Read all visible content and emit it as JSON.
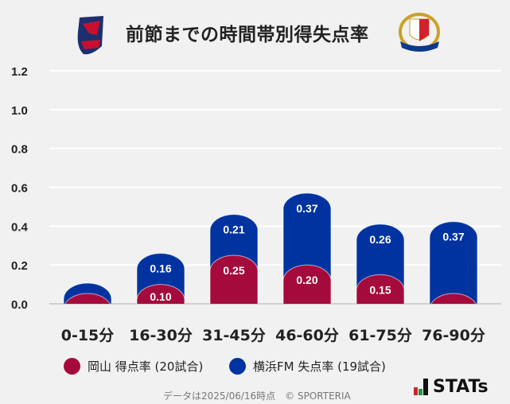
{
  "title": "前節までの時間帯別得失点率",
  "logos": {
    "left": "Fagiano Okayama",
    "right": "Yokohama F·Marinos"
  },
  "chart_data": {
    "type": "bar",
    "stacked": true,
    "categories": [
      "0-15分",
      "16-30分",
      "31-45分",
      "46-60分",
      "61-75分",
      "76-90分"
    ],
    "series": [
      {
        "name": "岡山 得点率 (20試合)",
        "color": "#a50a3c",
        "values": [
          0,
          0.1,
          0.25,
          0.2,
          0.15,
          0
        ]
      },
      {
        "name": "横浜FM 失点率 (19試合)",
        "color": "#0033a0",
        "values": [
          0,
          0.16,
          0.21,
          0.37,
          0.26,
          0.37
        ]
      }
    ],
    "ylim": [
      0,
      1.2
    ],
    "yticks": [
      "0.0",
      "0.2",
      "0.4",
      "0.6",
      "0.8",
      "1.0",
      "1.2"
    ],
    "grid": true,
    "legend": "bottom"
  },
  "footer": {
    "note": "データは2025/06/16時点　© SPORTERIA",
    "brand": "STATs"
  }
}
